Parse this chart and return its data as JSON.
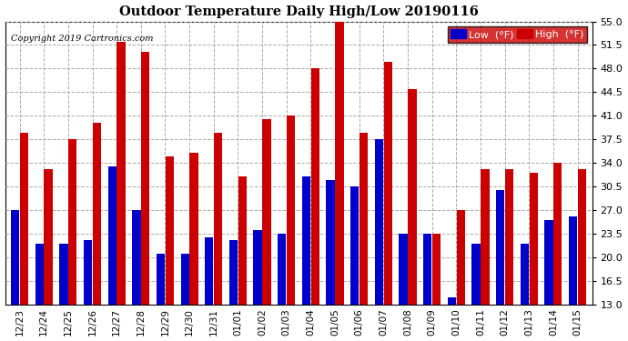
{
  "title": "Outdoor Temperature Daily High/Low 20190116",
  "copyright": "Copyright 2019 Cartronics.com",
  "legend_low": "Low  (°F)",
  "legend_high": "High  (°F)",
  "low_color": "#0000cc",
  "high_color": "#cc0000",
  "background_color": "#ffffff",
  "plot_bg_color": "#ffffff",
  "grid_color": "#aaaaaa",
  "ylim": [
    13.0,
    55.0
  ],
  "yticks": [
    13.0,
    16.5,
    20.0,
    23.5,
    27.0,
    30.5,
    34.0,
    37.5,
    41.0,
    44.5,
    48.0,
    51.5,
    55.0
  ],
  "dates": [
    "12/23",
    "12/24",
    "12/25",
    "12/26",
    "12/27",
    "12/28",
    "12/29",
    "12/30",
    "12/31",
    "01/01",
    "01/02",
    "01/03",
    "01/04",
    "01/05",
    "01/06",
    "01/07",
    "01/08",
    "01/09",
    "01/10",
    "01/11",
    "01/12",
    "01/13",
    "01/14",
    "01/15"
  ],
  "highs": [
    38.5,
    33.0,
    37.5,
    40.0,
    52.0,
    50.5,
    35.0,
    35.5,
    38.5,
    32.0,
    40.5,
    41.0,
    48.0,
    56.0,
    38.5,
    49.0,
    45.0,
    23.5,
    27.0,
    33.0,
    33.0,
    32.5,
    34.0,
    33.0
  ],
  "lows": [
    27.0,
    22.0,
    22.0,
    22.5,
    33.5,
    27.0,
    20.5,
    20.5,
    23.0,
    22.5,
    24.0,
    23.5,
    32.0,
    31.5,
    30.5,
    37.5,
    23.5,
    23.5,
    14.0,
    22.0,
    30.0,
    22.0,
    25.5,
    26.0
  ]
}
